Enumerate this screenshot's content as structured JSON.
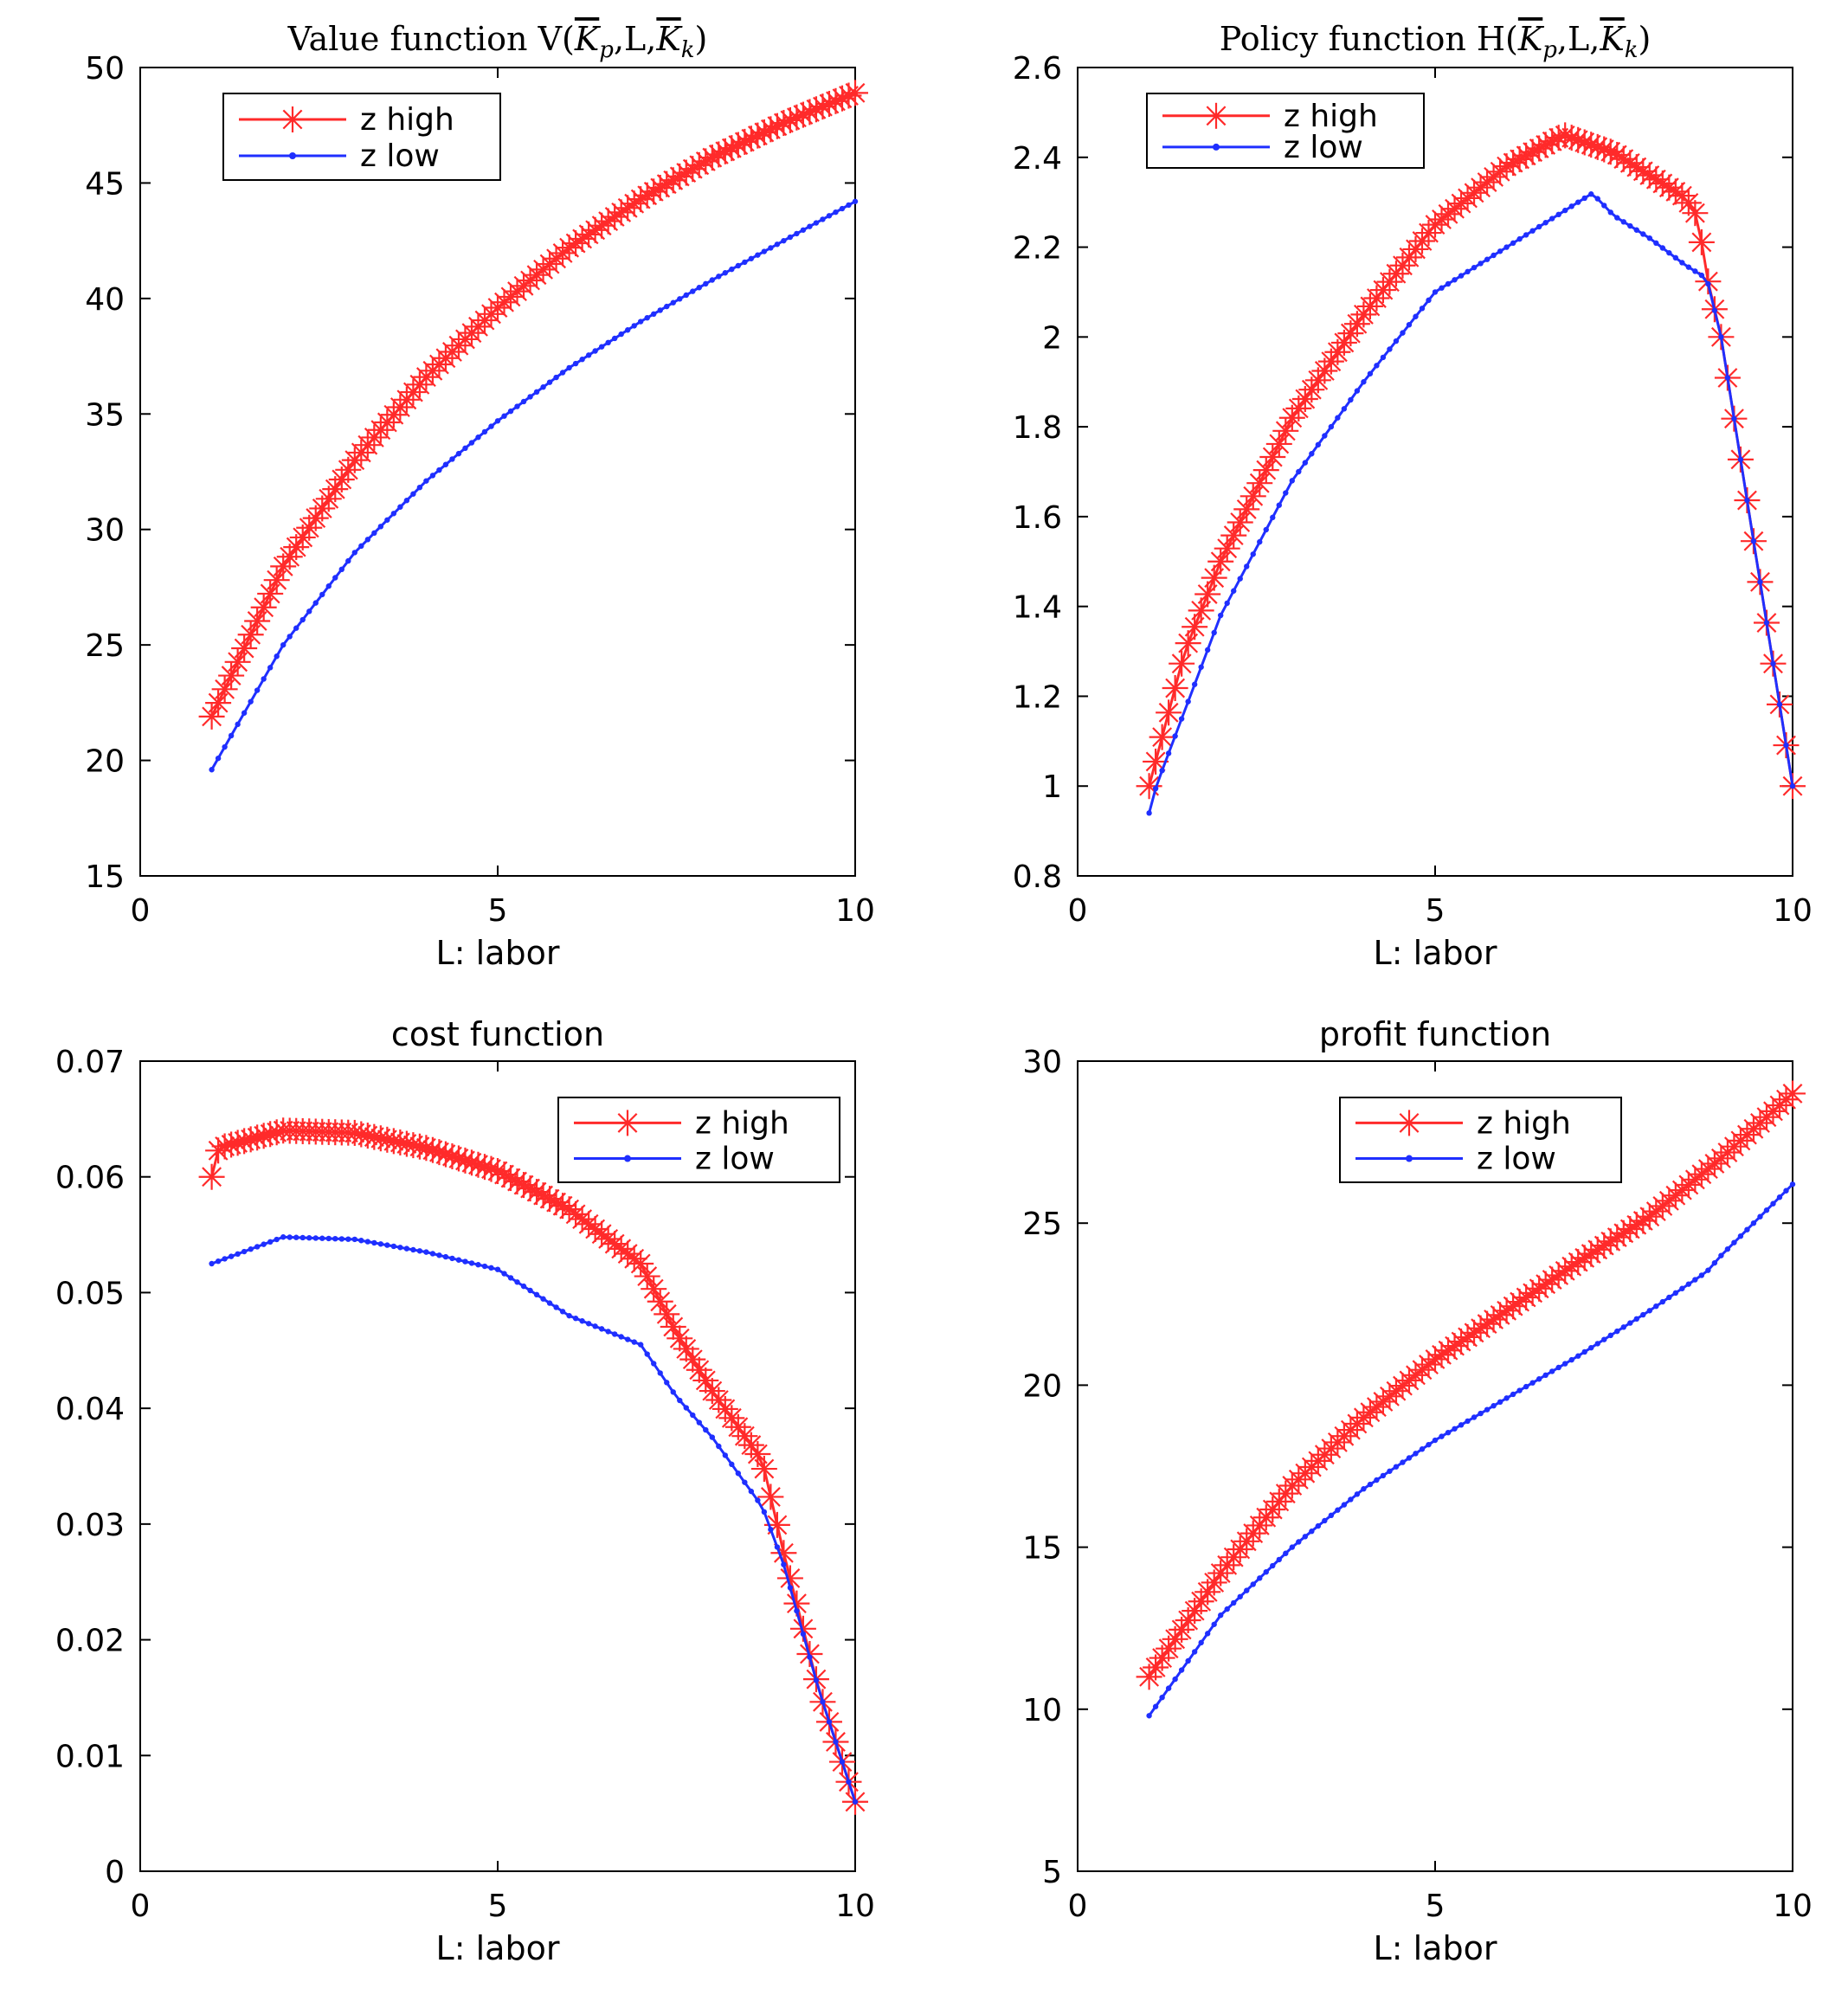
{
  "colors": {
    "z_high": "#ff2a2a",
    "z_low": "#1f2fff",
    "axes": "#000000",
    "background": "#ffffff"
  },
  "chart_data": [
    {
      "type": "line",
      "title_parts": [
        "Value function V(",
        "K",
        "p",
        ",L,",
        "K",
        "k",
        ")"
      ],
      "xlabel": "L: labor",
      "ylabel": "",
      "xlim": [
        0,
        10
      ],
      "ylim": [
        15,
        50
      ],
      "xticks": [
        0,
        5,
        10
      ],
      "yticks": [
        15,
        20,
        25,
        30,
        35,
        40,
        45,
        50
      ],
      "legend_position": "top-left",
      "series": [
        {
          "name": "z high",
          "marker": "asterisk",
          "x_range": [
            1,
            10
          ],
          "points": 100,
          "key_points": [
            [
              1,
              21.9
            ],
            [
              2,
              28.4
            ],
            [
              3,
              33.0
            ],
            [
              4,
              36.6
            ],
            [
              5,
              39.6
            ],
            [
              6,
              42.2
            ],
            [
              7,
              44.3
            ],
            [
              8,
              46.1
            ],
            [
              9,
              47.6
            ],
            [
              10,
              48.9
            ]
          ]
        },
        {
          "name": "z low",
          "marker": "dot",
          "x_range": [
            1,
            10
          ],
          "points": 100,
          "key_points": [
            [
              1,
              19.6
            ],
            [
              2,
              25.0
            ],
            [
              3,
              29.0
            ],
            [
              4,
              32.1
            ],
            [
              5,
              34.7
            ],
            [
              6,
              37.0
            ],
            [
              7,
              39.0
            ],
            [
              8,
              40.8
            ],
            [
              9,
              42.5
            ],
            [
              10,
              44.2
            ]
          ]
        }
      ]
    },
    {
      "type": "line",
      "title_parts": [
        "Policy function H(",
        "K",
        "p",
        ",L,",
        "K",
        "k",
        ")"
      ],
      "xlabel": "L: labor",
      "ylabel": "",
      "xlim": [
        0,
        10
      ],
      "ylim": [
        0.8,
        2.6
      ],
      "xticks": [
        0,
        5,
        10
      ],
      "yticks": [
        0.8,
        1,
        1.2,
        1.4,
        1.6,
        1.8,
        2,
        2.2,
        2.4,
        2.6
      ],
      "legend_position": "top-left",
      "series": [
        {
          "name": "z high",
          "marker": "asterisk",
          "x_range": [
            1,
            10
          ],
          "points": 100,
          "key_points": [
            [
              1,
              1.0
            ],
            [
              1.5,
              1.3
            ],
            [
              2,
              1.5
            ],
            [
              3,
              1.82
            ],
            [
              4,
              2.05
            ],
            [
              5,
              2.25
            ],
            [
              6,
              2.38
            ],
            [
              6.8,
              2.45
            ],
            [
              7.5,
              2.41
            ],
            [
              8,
              2.36
            ],
            [
              8.5,
              2.31
            ],
            [
              8.7,
              2.26
            ],
            [
              8.75,
              2.17
            ],
            [
              9,
              2.0
            ],
            [
              9.5,
              1.5
            ],
            [
              10,
              1.0
            ]
          ]
        },
        {
          "name": "z low",
          "marker": "dot",
          "x_range": [
            1,
            10
          ],
          "points": 100,
          "key_points": [
            [
              1,
              0.94
            ],
            [
              1.1,
              1.0
            ],
            [
              2,
              1.38
            ],
            [
              3,
              1.68
            ],
            [
              4,
              1.9
            ],
            [
              5,
              2.1
            ],
            [
              6,
              2.2
            ],
            [
              7.2,
              2.32
            ],
            [
              7.5,
              2.27
            ],
            [
              8,
              2.22
            ],
            [
              8.5,
              2.16
            ],
            [
              8.8,
              2.13
            ],
            [
              9,
              2.0
            ],
            [
              9.5,
              1.5
            ],
            [
              10,
              1.0
            ]
          ]
        }
      ]
    },
    {
      "type": "line",
      "title": "cost function",
      "xlabel": "L: labor",
      "ylabel": "",
      "xlim": [
        0,
        10
      ],
      "ylim": [
        0,
        0.07
      ],
      "xticks": [
        0,
        5,
        10
      ],
      "yticks": [
        0,
        0.01,
        0.02,
        0.03,
        0.04,
        0.05,
        0.06,
        0.07
      ],
      "legend_position": "top-right",
      "series": [
        {
          "name": "z high",
          "marker": "asterisk",
          "x_range": [
            1,
            10
          ],
          "points": 100,
          "key_points": [
            [
              1,
              0.06
            ],
            [
              1.1,
              0.0625
            ],
            [
              2,
              0.064
            ],
            [
              3,
              0.0638
            ],
            [
              4,
              0.0625
            ],
            [
              5,
              0.0605
            ],
            [
              6,
              0.0572
            ],
            [
              7,
              0.0525
            ],
            [
              7.5,
              0.0465
            ],
            [
              8,
              0.0415
            ],
            [
              8.7,
              0.0355
            ],
            [
              9,
              0.0275
            ],
            [
              9.5,
              0.0155
            ],
            [
              10,
              0.006
            ]
          ]
        },
        {
          "name": "z low",
          "marker": "dot",
          "x_range": [
            1,
            10
          ],
          "points": 100,
          "key_points": [
            [
              1,
              0.0525
            ],
            [
              2,
              0.0548
            ],
            [
              3,
              0.0546
            ],
            [
              4,
              0.0535
            ],
            [
              5,
              0.052
            ],
            [
              6,
              0.048
            ],
            [
              7,
              0.0455
            ],
            [
              7.5,
              0.041
            ],
            [
              8,
              0.0375
            ],
            [
              8.7,
              0.0315
            ],
            [
              9,
              0.0265
            ],
            [
              9.5,
              0.0155
            ],
            [
              10,
              0.006
            ]
          ]
        }
      ]
    },
    {
      "type": "line",
      "title": "profit function",
      "xlabel": "L: labor",
      "ylabel": "",
      "xlim": [
        0,
        10
      ],
      "ylim": [
        5,
        30
      ],
      "xticks": [
        0,
        5,
        10
      ],
      "yticks": [
        5,
        10,
        15,
        20,
        25,
        30
      ],
      "legend_position": "top-right",
      "series": [
        {
          "name": "z high",
          "marker": "asterisk",
          "x_range": [
            1,
            10
          ],
          "points": 100,
          "key_points": [
            [
              1,
              11.0
            ],
            [
              2,
              14.2
            ],
            [
              3,
              16.9
            ],
            [
              4,
              19.0
            ],
            [
              5,
              20.8
            ],
            [
              6,
              22.3
            ],
            [
              7,
              23.8
            ],
            [
              8,
              25.2
            ],
            [
              9,
              27.0
            ],
            [
              10,
              29.0
            ]
          ]
        },
        {
          "name": "z low",
          "marker": "dot",
          "x_range": [
            1,
            10
          ],
          "points": 100,
          "key_points": [
            [
              1,
              9.8
            ],
            [
              2,
              12.9
            ],
            [
              3,
              15.0
            ],
            [
              4,
              16.8
            ],
            [
              5,
              18.3
            ],
            [
              6,
              19.6
            ],
            [
              7,
              20.9
            ],
            [
              8,
              22.3
            ],
            [
              8.8,
              23.5
            ],
            [
              9,
              24.0
            ],
            [
              10,
              26.2
            ]
          ]
        }
      ]
    }
  ]
}
